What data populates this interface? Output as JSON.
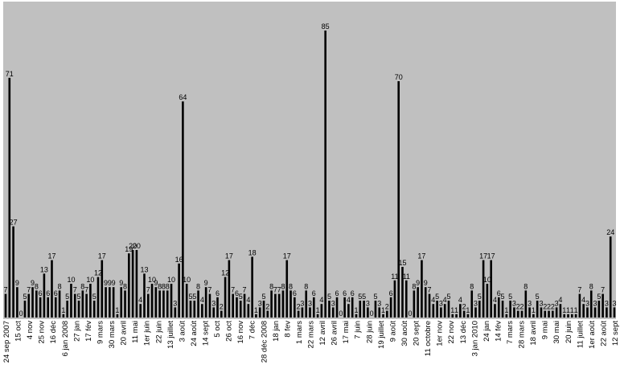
{
  "chart_data": {
    "type": "bar",
    "title": "",
    "xlabel": "",
    "ylabel": "",
    "ylim": [
      0,
      90
    ],
    "grid": false,
    "legend": "none",
    "colors": {
      "plot_background": "#c0c0c0",
      "bar": "#000000",
      "text": "#000000",
      "page": "#ffffff"
    },
    "values": [
      7,
      71,
      27,
      9,
      0,
      5,
      7,
      9,
      8,
      6,
      13,
      6,
      17,
      6,
      8,
      1,
      5,
      10,
      7,
      5,
      8,
      7,
      10,
      5,
      12,
      17,
      9,
      9,
      9,
      1,
      9,
      8,
      19,
      20,
      20,
      4,
      13,
      7,
      10,
      9,
      8,
      8,
      8,
      10,
      3,
      16,
      64,
      10,
      5,
      5,
      8,
      4,
      9,
      7,
      3,
      6,
      2,
      12,
      17,
      7,
      6,
      5,
      7,
      4,
      18,
      1,
      3,
      5,
      2,
      8,
      7,
      7,
      8,
      17,
      8,
      6,
      2,
      3,
      8,
      3,
      6,
      1,
      4,
      85,
      5,
      3,
      6,
      0,
      6,
      4,
      6,
      1,
      5,
      5,
      3,
      0,
      5,
      3,
      1,
      2,
      6,
      11,
      70,
      15,
      11,
      0,
      8,
      9,
      17,
      9,
      7,
      4,
      5,
      3,
      4,
      5,
      1,
      1,
      4,
      2,
      1,
      8,
      3,
      5,
      17,
      10,
      17,
      4,
      6,
      5,
      1,
      5,
      3,
      2,
      2,
      8,
      3,
      1,
      5,
      3,
      2,
      2,
      2,
      3,
      4,
      1,
      1,
      1,
      1,
      7,
      4,
      3,
      8,
      3,
      5,
      7,
      3,
      24,
      3
    ],
    "tick_labels": [
      "24 sep 2007",
      "15 oct",
      "4 nov",
      "25 nov",
      "16 déc",
      "6 jan 2008",
      "27 jan",
      "17 fév",
      "9 mars",
      "30 mars",
      "20 avril",
      "11 mai",
      "1er juin",
      "22 juin",
      "13 juillet",
      "3 août",
      "24 août",
      "14 sept",
      "5 oct",
      "26 oct",
      "16 nov",
      "7 déc",
      "28 déc 2008",
      "18 jan",
      "8 fev",
      "1 mars",
      "22 mars",
      "12 avril",
      "26 avril",
      "17 mai",
      "7 juin",
      "28 juin",
      "19 juillet",
      "9 août",
      "30 août",
      "20 sept",
      "11 octobre",
      "1er nov",
      "22 nov",
      "13 déc",
      "3 jan 2010",
      "24 jan",
      "14 fév",
      "7 mars",
      "28 mars",
      "18 avril",
      "9 mai",
      "30 mai",
      "20 juin",
      "11 juillet",
      "1er août",
      "22 août",
      "12 sept"
    ]
  }
}
